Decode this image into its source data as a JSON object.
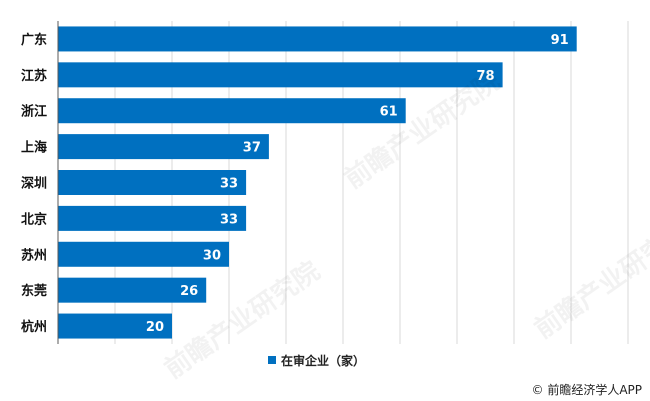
{
  "chart_data": {
    "type": "bar",
    "orientation": "horizontal",
    "categories": [
      "广东",
      "江苏",
      "浙江",
      "上海",
      "深圳",
      "北京",
      "苏州",
      "东莞",
      "杭州"
    ],
    "series": [
      {
        "name": "在审企业（家）",
        "values": [
          91,
          78,
          61,
          37,
          33,
          33,
          30,
          26,
          20
        ],
        "color": "#0070C0"
      }
    ],
    "xlim": [
      0,
      100
    ],
    "grid": "vertical",
    "legend": "bottom-center",
    "title": "",
    "xlabel": "",
    "ylabel": ""
  },
  "source": "© 前瞻经济学人APP",
  "watermark": "前瞻产业研究院",
  "colors": {
    "bar": "#0070C0",
    "grid": "#D9D9D9",
    "axis": "#595959",
    "bar_label": "#ffffff",
    "category_label": "#111111"
  }
}
